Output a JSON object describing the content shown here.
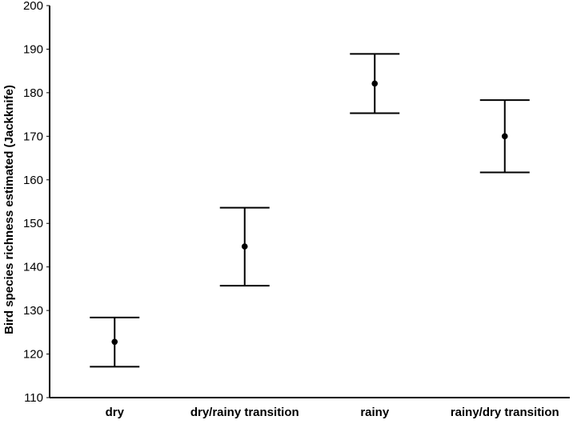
{
  "chart_data": {
    "type": "errorbar",
    "title": "",
    "xlabel": "",
    "ylabel": "Bird species richness estimated (Jackknife)",
    "ylim": [
      110,
      200
    ],
    "yticks": [
      110,
      120,
      130,
      140,
      150,
      160,
      170,
      180,
      190,
      200
    ],
    "grid": false,
    "legend": "none",
    "categories": [
      "dry",
      "dry/rainy transition",
      "rainy",
      "rainy/dry transition"
    ],
    "series": [
      {
        "values": [
          122.8,
          144.7,
          182.1,
          170.0
        ],
        "lower": [
          117.1,
          135.7,
          175.3,
          161.7
        ],
        "upper": [
          128.4,
          153.6,
          188.9,
          178.3
        ]
      }
    ],
    "colors": {
      "marks": "#000000",
      "axis": "#000000",
      "background": "#ffffff"
    }
  }
}
